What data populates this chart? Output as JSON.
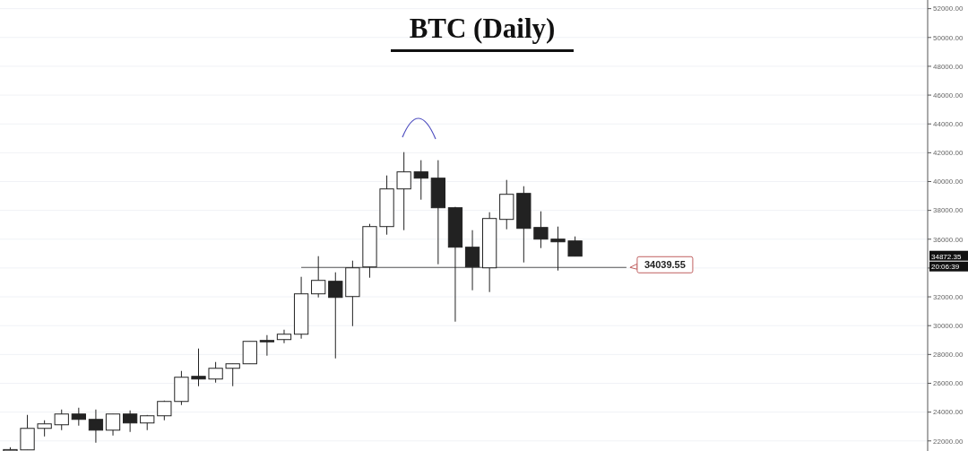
{
  "chart_data": {
    "type": "candlestick",
    "title": "BTC (Daily)",
    "categories": [
      null,
      null,
      null,
      null,
      null,
      null,
      null,
      null,
      null,
      null,
      null,
      null,
      null,
      null,
      null,
      null,
      null,
      null,
      null,
      null,
      null,
      null,
      null,
      null,
      null,
      null,
      null,
      null,
      null,
      null,
      null,
      null,
      null,
      null,
      null,
      null,
      null,
      null,
      null,
      null,
      null,
      null,
      null,
      null,
      null,
      null,
      null,
      null,
      null,
      null,
      null,
      null,
      null,
      null
    ],
    "ohlc": [
      [
        21350,
        21560,
        21300,
        21400
      ],
      [
        21378,
        23805,
        21378,
        22871
      ],
      [
        22871,
        23432,
        22311,
        23183
      ],
      [
        23120,
        24178,
        22747,
        23867
      ],
      [
        23867,
        24303,
        23058,
        23494
      ],
      [
        23494,
        24178,
        21876,
        22747
      ],
      [
        22747,
        23867,
        22373,
        23867
      ],
      [
        23867,
        24116,
        22622,
        23245
      ],
      [
        23245,
        23800,
        22747,
        23743
      ],
      [
        23743,
        24800,
        23432,
        24739
      ],
      [
        24739,
        26855,
        24490,
        26419
      ],
      [
        26481,
        28411,
        25797,
        26295
      ],
      [
        26295,
        27477,
        26046,
        27041
      ],
      [
        27041,
        27353,
        25797,
        27353
      ],
      [
        27353,
        28909,
        27353,
        28909
      ],
      [
        28971,
        29344,
        27913,
        28909
      ],
      [
        29033,
        29718,
        28784,
        29406
      ],
      [
        29406,
        33390,
        29095,
        32207
      ],
      [
        32207,
        34821,
        31958,
        33141
      ],
      [
        33079,
        33701,
        27726,
        31958
      ],
      [
        32020,
        34510,
        29967,
        34012
      ],
      [
        34075,
        37062,
        33328,
        36875
      ],
      [
        36875,
        40423,
        36315,
        39489
      ],
      [
        39489,
        42041,
        36626,
        40672
      ],
      [
        40672,
        41481,
        38742,
        40236
      ],
      [
        40236,
        41481,
        34262,
        38182
      ],
      [
        38182,
        38244,
        30278,
        35444
      ],
      [
        35444,
        36626,
        32456,
        34075
      ],
      [
        34012,
        37871,
        32332,
        37436
      ],
      [
        37374,
        40112,
        36688,
        39116
      ],
      [
        39178,
        39676,
        34386,
        36751
      ],
      [
        36813,
        37933,
        35382,
        36004
      ],
      [
        36004,
        36875,
        33825,
        35817
      ],
      [
        35879,
        36190,
        34821,
        34821
      ],
      null,
      null,
      null,
      null,
      null,
      null,
      null,
      null,
      null,
      null,
      null,
      null,
      null,
      null,
      null,
      null,
      null,
      null,
      null,
      null
    ],
    "ylim": [
      21300,
      52600
    ],
    "yticks": [
      {
        "value": 22000,
        "label": "22000.00"
      },
      {
        "value": 24000,
        "label": "24000.00"
      },
      {
        "value": 26000,
        "label": "26000.00"
      },
      {
        "value": 28000,
        "label": "28000.00"
      },
      {
        "value": 30000,
        "label": "30000.00"
      },
      {
        "value": 32000,
        "label": "32000.00"
      },
      {
        "value": 34000,
        "label": null
      },
      {
        "value": 36000,
        "label": "36000.00"
      },
      {
        "value": 38000,
        "label": "38000.00"
      },
      {
        "value": 40000,
        "label": "40000.00"
      },
      {
        "value": 42000,
        "label": "42000.00"
      },
      {
        "value": 44000,
        "label": "44000.00"
      },
      {
        "value": 46000,
        "label": "46000.00"
      },
      {
        "value": 48000,
        "label": "48000.00"
      },
      {
        "value": 50000,
        "label": "50000.00"
      },
      {
        "value": 52000,
        "label": "52000.00"
      }
    ],
    "grid": "y",
    "ref_lines": [
      {
        "axis": "y",
        "value": 34039.55,
        "label": "34039.55",
        "color": "#555555"
      }
    ],
    "annotations": [
      "34872.35",
      "20:06:39"
    ]
  }
}
